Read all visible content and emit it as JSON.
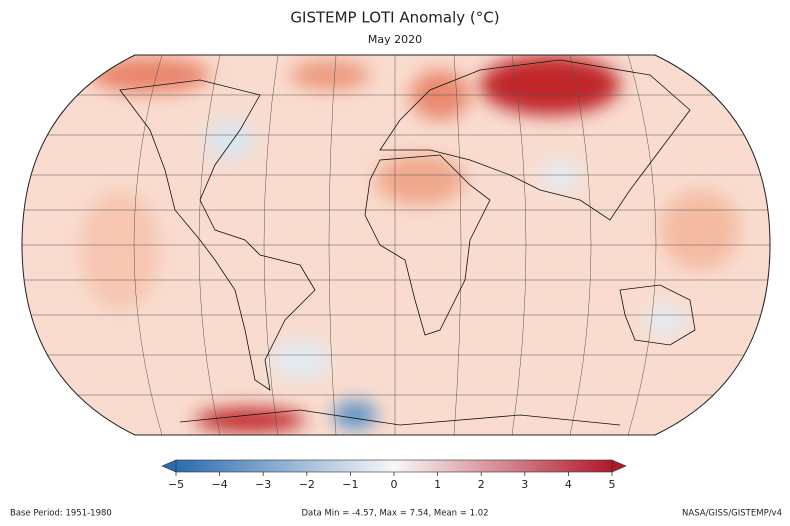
{
  "header": {
    "title": "GISTEMP LOTI Anomaly (°C)",
    "subtitle": "May 2020"
  },
  "colorbar": {
    "lim": [
      -5,
      5
    ],
    "ticks": [
      {
        "value": -5,
        "label": "−5"
      },
      {
        "value": -4,
        "label": "−4"
      },
      {
        "value": -3,
        "label": "−3"
      },
      {
        "value": -2,
        "label": "−2"
      },
      {
        "value": -1,
        "label": "−1"
      },
      0,
      1,
      2,
      3,
      4,
      5
    ],
    "colors": [
      "#2b6cb0",
      "#f7f7f7",
      "#b2182b"
    ]
  },
  "footer": {
    "left": "Base Period: 1951-1980",
    "center": "Data Min = -4.57, Max = 7.54, Mean = 1.02",
    "right": "NASA/GISS/GISTEMP/v4"
  }
}
